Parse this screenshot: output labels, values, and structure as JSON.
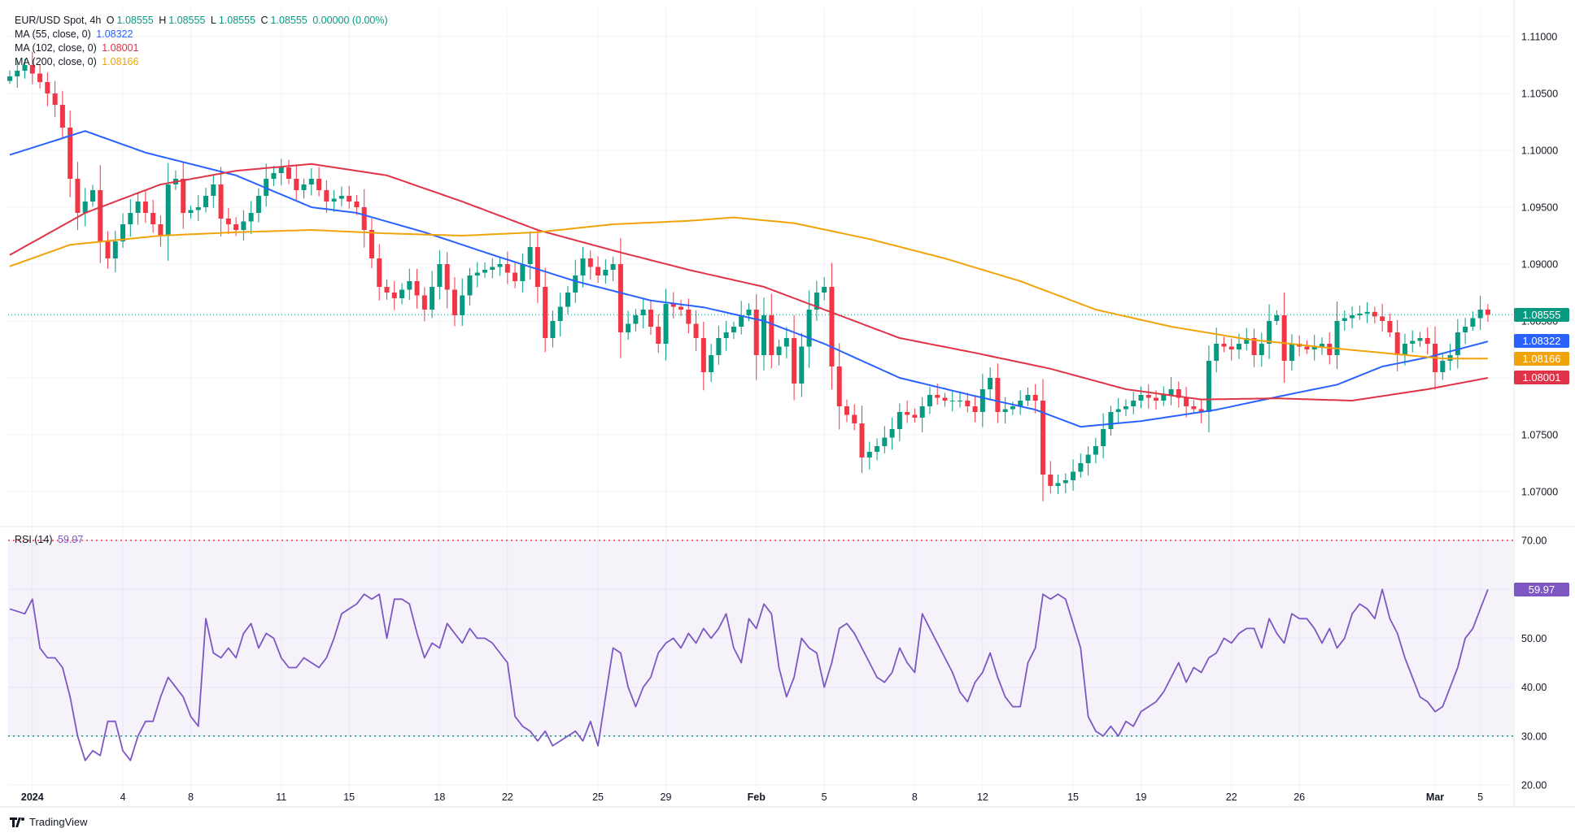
{
  "header": {
    "symbol": "EUR/USD Spot, 4h",
    "o_label": "O",
    "o": "1.08555",
    "h_label": "H",
    "h": "1.08555",
    "l_label": "L",
    "l": "1.08555",
    "c_label": "C",
    "c": "1.08555",
    "change": "0.00000 (0.00%)"
  },
  "indicators": [
    {
      "label": "MA (55, close, 0)",
      "value": "1.08322",
      "color": "#2962ff"
    },
    {
      "label": "MA (102, close, 0)",
      "value": "1.08001",
      "color": "#e03347"
    },
    {
      "label": "MA (200, close, 0)",
      "value": "1.08166",
      "color": "#f0a30a"
    }
  ],
  "price_tags": [
    {
      "value": "1.08555",
      "price": 1.08555,
      "color": "#089981"
    },
    {
      "value": "1.08322",
      "price": 1.08322,
      "color": "#2962ff"
    },
    {
      "value": "1.08166",
      "price": 1.08166,
      "color": "#f0a30a"
    },
    {
      "value": "1.08001",
      "price": 1.08001,
      "color": "#e03347"
    }
  ],
  "rsi": {
    "label": "RSI (14)",
    "value": "59.97",
    "color": "#7e57c2",
    "ticks": [
      "70.00",
      "60.00",
      "50.00",
      "40.00",
      "30.00",
      "20.00"
    ],
    "ylim": [
      16,
      72.5
    ],
    "upper": 70,
    "lower": 30
  },
  "brand": "TradingView",
  "chart_data": {
    "type": "candlestick",
    "ylim": [
      1.0675,
      1.1125
    ],
    "y_ticks": [
      "1.11000",
      "1.10500",
      "1.10000",
      "1.09500",
      "1.09000",
      "1.08500",
      "1.08000",
      "1.07500",
      "1.07000"
    ],
    "x_ticks": [
      {
        "label": "2024",
        "t": 3
      },
      {
        "label": "4",
        "t": 15
      },
      {
        "label": "8",
        "t": 24
      },
      {
        "label": "11",
        "t": 36
      },
      {
        "label": "15",
        "t": 45
      },
      {
        "label": "18",
        "t": 57
      },
      {
        "label": "22",
        "t": 66
      },
      {
        "label": "25",
        "t": 78
      },
      {
        "label": "29",
        "t": 87
      },
      {
        "label": "Feb",
        "t": 99
      },
      {
        "label": "5",
        "t": 108
      },
      {
        "label": "8",
        "t": 120
      },
      {
        "label": "12",
        "t": 129
      },
      {
        "label": "15",
        "t": 141
      },
      {
        "label": "19",
        "t": 150
      },
      {
        "label": "22",
        "t": 162
      },
      {
        "label": "26",
        "t": 171
      },
      {
        "label": "Mar",
        "t": 189
      },
      {
        "label": "5",
        "t": 195
      }
    ],
    "keypoints": [
      [
        0,
        1.1065
      ],
      [
        1,
        1.107
      ],
      [
        2,
        1.1075
      ],
      [
        4,
        1.106
      ],
      [
        6,
        1.104
      ],
      [
        7,
        1.102
      ],
      [
        8,
        1.0975
      ],
      [
        9,
        1.0945
      ],
      [
        11,
        1.0965
      ],
      [
        12,
        1.092
      ],
      [
        13,
        1.0905
      ],
      [
        15,
        1.0935
      ],
      [
        17,
        1.0955
      ],
      [
        19,
        1.0935
      ],
      [
        20,
        1.0925
      ],
      [
        21,
        1.097
      ],
      [
        22,
        1.0975
      ],
      [
        23,
        1.0945
      ],
      [
        25,
        1.095
      ],
      [
        27,
        1.097
      ],
      [
        28,
        1.094
      ],
      [
        30,
        1.093
      ],
      [
        32,
        1.0945
      ],
      [
        34,
        1.0975
      ],
      [
        36,
        1.0985
      ],
      [
        38,
        1.0965
      ],
      [
        40,
        1.0975
      ],
      [
        42,
        1.0955
      ],
      [
        44,
        1.096
      ],
      [
        46,
        1.095
      ],
      [
        47,
        1.093
      ],
      [
        49,
        1.088
      ],
      [
        51,
        1.087
      ],
      [
        53,
        1.0885
      ],
      [
        55,
        1.086
      ],
      [
        57,
        1.09
      ],
      [
        59,
        1.0855
      ],
      [
        61,
        1.089
      ],
      [
        63,
        1.0895
      ],
      [
        65,
        1.09
      ],
      [
        67,
        1.0885
      ],
      [
        69,
        1.0915
      ],
      [
        70,
        1.088
      ],
      [
        71,
        1.0835
      ],
      [
        72,
        1.085
      ],
      [
        74,
        1.0875
      ],
      [
        76,
        1.0905
      ],
      [
        78,
        1.089
      ],
      [
        80,
        1.09
      ],
      [
        81,
        1.084
      ],
      [
        83,
        1.0855
      ],
      [
        84,
        1.086
      ],
      [
        86,
        1.083
      ],
      [
        87,
        1.0865
      ],
      [
        89,
        1.086
      ],
      [
        91,
        1.0835
      ],
      [
        92,
        1.0805
      ],
      [
        94,
        1.0835
      ],
      [
        96,
        1.0845
      ],
      [
        97,
        1.0855
      ],
      [
        98,
        1.086
      ],
      [
        99,
        1.082
      ],
      [
        100,
        1.0855
      ],
      [
        101,
        1.082
      ],
      [
        103,
        1.0835
      ],
      [
        104,
        1.0795
      ],
      [
        106,
        1.086
      ],
      [
        107,
        1.0875
      ],
      [
        108,
        1.088
      ],
      [
        109,
        1.081
      ],
      [
        110,
        1.0775
      ],
      [
        112,
        1.076
      ],
      [
        113,
        1.073
      ],
      [
        115,
        1.074
      ],
      [
        117,
        1.0755
      ],
      [
        118,
        1.077
      ],
      [
        120,
        1.0765
      ],
      [
        122,
        1.0785
      ],
      [
        124,
        1.078
      ],
      [
        126,
        1.078
      ],
      [
        128,
        1.077
      ],
      [
        129,
        1.079
      ],
      [
        130,
        1.08
      ],
      [
        131,
        1.077
      ],
      [
        133,
        1.0775
      ],
      [
        135,
        1.0785
      ],
      [
        136,
        1.078
      ],
      [
        137,
        1.0715
      ],
      [
        138,
        1.0705
      ],
      [
        140,
        1.071
      ],
      [
        142,
        1.0725
      ],
      [
        144,
        1.074
      ],
      [
        145,
        1.0755
      ],
      [
        146,
        1.077
      ],
      [
        148,
        1.0775
      ],
      [
        150,
        1.0785
      ],
      [
        152,
        1.078
      ],
      [
        154,
        1.079
      ],
      [
        156,
        1.0775
      ],
      [
        158,
        1.077
      ],
      [
        159,
        1.0815
      ],
      [
        160,
        1.083
      ],
      [
        162,
        1.0825
      ],
      [
        164,
        1.0835
      ],
      [
        165,
        1.082
      ],
      [
        166,
        1.083
      ],
      [
        167,
        1.085
      ],
      [
        168,
        1.0855
      ],
      [
        169,
        1.0815
      ],
      [
        170,
        1.083
      ],
      [
        172,
        1.0825
      ],
      [
        174,
        1.083
      ],
      [
        175,
        1.082
      ],
      [
        176,
        1.085
      ],
      [
        178,
        1.0855
      ],
      [
        180,
        1.0858
      ],
      [
        182,
        1.085
      ],
      [
        183,
        1.084
      ],
      [
        184,
        1.082
      ],
      [
        185,
        1.083
      ],
      [
        187,
        1.0835
      ],
      [
        188,
        1.083
      ],
      [
        189,
        1.0805
      ],
      [
        190,
        1.0815
      ],
      [
        191,
        1.082
      ],
      [
        192,
        1.084
      ],
      [
        193,
        1.0845
      ],
      [
        195,
        1.086
      ],
      [
        196,
        1.08555
      ]
    ],
    "ma55": [
      [
        0,
        1.0996
      ],
      [
        10,
        1.1017
      ],
      [
        18,
        1.0998
      ],
      [
        30,
        1.0978
      ],
      [
        40,
        1.095
      ],
      [
        46,
        1.0945
      ],
      [
        55,
        1.0928
      ],
      [
        65,
        1.0906
      ],
      [
        75,
        1.0885
      ],
      [
        85,
        1.0868
      ],
      [
        92,
        1.0862
      ],
      [
        100,
        1.085
      ],
      [
        108,
        1.083
      ],
      [
        118,
        1.08
      ],
      [
        128,
        1.0784
      ],
      [
        136,
        1.0772
      ],
      [
        142,
        1.0757
      ],
      [
        150,
        1.0762
      ],
      [
        160,
        1.0772
      ],
      [
        170,
        1.0786
      ],
      [
        176,
        1.0794
      ],
      [
        182,
        1.081
      ],
      [
        188,
        1.0818
      ],
      [
        196,
        1.0832
      ]
    ],
    "ma102": [
      [
        0,
        1.0908
      ],
      [
        10,
        1.0945
      ],
      [
        20,
        1.097
      ],
      [
        30,
        1.0982
      ],
      [
        40,
        1.0988
      ],
      [
        50,
        1.0978
      ],
      [
        60,
        1.0955
      ],
      [
        70,
        1.093
      ],
      [
        80,
        1.0912
      ],
      [
        90,
        1.0895
      ],
      [
        100,
        1.088
      ],
      [
        108,
        1.086
      ],
      [
        118,
        1.0835
      ],
      [
        128,
        1.0822
      ],
      [
        138,
        1.0808
      ],
      [
        148,
        1.079
      ],
      [
        158,
        1.0781
      ],
      [
        168,
        1.0782
      ],
      [
        178,
        1.078
      ],
      [
        188,
        1.079
      ],
      [
        196,
        1.08
      ]
    ],
    "ma200": [
      [
        0,
        1.0898
      ],
      [
        8,
        1.0917
      ],
      [
        20,
        1.0925
      ],
      [
        30,
        1.0928
      ],
      [
        40,
        1.093
      ],
      [
        50,
        1.0927
      ],
      [
        60,
        1.0925
      ],
      [
        70,
        1.0928
      ],
      [
        80,
        1.0935
      ],
      [
        90,
        1.0938
      ],
      [
        96,
        1.0941
      ],
      [
        104,
        1.0936
      ],
      [
        114,
        1.0922
      ],
      [
        124,
        1.0905
      ],
      [
        134,
        1.0885
      ],
      [
        144,
        1.086
      ],
      [
        154,
        1.0845
      ],
      [
        164,
        1.0834
      ],
      [
        174,
        1.0827
      ],
      [
        182,
        1.0822
      ],
      [
        190,
        1.0817
      ],
      [
        196,
        1.0817
      ]
    ],
    "rsi_keypoints": [
      [
        0,
        56
      ],
      [
        2,
        55
      ],
      [
        3,
        58
      ],
      [
        4,
        48
      ],
      [
        5,
        46
      ],
      [
        6,
        46
      ],
      [
        7,
        44
      ],
      [
        8,
        38
      ],
      [
        9,
        30
      ],
      [
        10,
        25
      ],
      [
        11,
        27
      ],
      [
        12,
        26
      ],
      [
        13,
        33
      ],
      [
        14,
        33
      ],
      [
        15,
        27
      ],
      [
        16,
        25
      ],
      [
        17,
        30
      ],
      [
        18,
        33
      ],
      [
        19,
        33
      ],
      [
        20,
        38
      ],
      [
        21,
        42
      ],
      [
        22,
        40
      ],
      [
        23,
        38
      ],
      [
        24,
        34
      ],
      [
        25,
        32
      ],
      [
        26,
        54
      ],
      [
        27,
        47
      ],
      [
        28,
        46
      ],
      [
        29,
        48
      ],
      [
        30,
        46
      ],
      [
        31,
        51
      ],
      [
        32,
        53
      ],
      [
        33,
        48
      ],
      [
        34,
        51
      ],
      [
        35,
        50
      ],
      [
        36,
        46
      ],
      [
        37,
        44
      ],
      [
        38,
        44
      ],
      [
        39,
        46
      ],
      [
        40,
        45
      ],
      [
        41,
        44
      ],
      [
        42,
        46
      ],
      [
        43,
        50
      ],
      [
        44,
        55
      ],
      [
        45,
        56
      ],
      [
        46,
        57
      ],
      [
        47,
        59
      ],
      [
        48,
        58
      ],
      [
        49,
        59
      ],
      [
        50,
        50
      ],
      [
        51,
        58
      ],
      [
        52,
        58
      ],
      [
        53,
        57
      ],
      [
        54,
        51
      ],
      [
        55,
        46
      ],
      [
        56,
        49
      ],
      [
        57,
        48
      ],
      [
        58,
        53
      ],
      [
        59,
        51
      ],
      [
        60,
        49
      ],
      [
        61,
        52
      ],
      [
        62,
        50
      ],
      [
        63,
        50
      ],
      [
        64,
        49
      ],
      [
        65,
        47
      ],
      [
        66,
        45
      ],
      [
        67,
        34
      ],
      [
        68,
        32
      ],
      [
        69,
        31
      ],
      [
        70,
        29
      ],
      [
        71,
        31
      ],
      [
        72,
        28
      ],
      [
        73,
        29
      ],
      [
        74,
        30
      ],
      [
        75,
        31
      ],
      [
        76,
        29
      ],
      [
        77,
        33
      ],
      [
        78,
        28
      ],
      [
        79,
        38
      ],
      [
        80,
        48
      ],
      [
        81,
        47
      ],
      [
        82,
        40
      ],
      [
        83,
        36
      ],
      [
        84,
        40
      ],
      [
        85,
        42
      ],
      [
        86,
        47
      ],
      [
        87,
        49
      ],
      [
        88,
        50
      ],
      [
        89,
        48
      ],
      [
        90,
        51
      ],
      [
        91,
        49
      ],
      [
        92,
        52
      ],
      [
        93,
        50
      ],
      [
        94,
        52
      ],
      [
        95,
        55
      ],
      [
        96,
        48
      ],
      [
        97,
        45
      ],
      [
        98,
        54
      ],
      [
        99,
        52
      ],
      [
        100,
        57
      ],
      [
        101,
        55
      ],
      [
        102,
        44
      ],
      [
        103,
        38
      ],
      [
        104,
        42
      ],
      [
        105,
        50
      ],
      [
        106,
        48
      ],
      [
        107,
        47
      ],
      [
        108,
        40
      ],
      [
        109,
        45
      ],
      [
        110,
        52
      ],
      [
        111,
        53
      ],
      [
        112,
        51
      ],
      [
        113,
        48
      ],
      [
        114,
        45
      ],
      [
        115,
        42
      ],
      [
        116,
        41
      ],
      [
        117,
        43
      ],
      [
        118,
        48
      ],
      [
        119,
        45
      ],
      [
        120,
        43
      ],
      [
        121,
        55
      ],
      [
        122,
        52
      ],
      [
        123,
        49
      ],
      [
        124,
        46
      ],
      [
        125,
        43
      ],
      [
        126,
        39
      ],
      [
        127,
        37
      ],
      [
        128,
        41
      ],
      [
        129,
        43
      ],
      [
        130,
        47
      ],
      [
        131,
        42
      ],
      [
        132,
        38
      ],
      [
        133,
        36
      ],
      [
        134,
        36
      ],
      [
        135,
        45
      ],
      [
        136,
        48
      ],
      [
        137,
        59
      ],
      [
        138,
        58
      ],
      [
        139,
        59
      ],
      [
        140,
        58
      ],
      [
        141,
        53
      ],
      [
        142,
        48
      ],
      [
        143,
        34
      ],
      [
        144,
        31
      ],
      [
        145,
        30
      ],
      [
        146,
        32
      ],
      [
        147,
        30
      ],
      [
        148,
        33
      ],
      [
        149,
        32
      ],
      [
        150,
        35
      ],
      [
        151,
        36
      ],
      [
        152,
        37
      ],
      [
        153,
        39
      ],
      [
        154,
        42
      ],
      [
        155,
        45
      ],
      [
        156,
        41
      ],
      [
        157,
        44
      ],
      [
        158,
        43
      ],
      [
        159,
        46
      ],
      [
        160,
        47
      ],
      [
        161,
        50
      ],
      [
        162,
        49
      ],
      [
        163,
        51
      ],
      [
        164,
        52
      ],
      [
        165,
        52
      ],
      [
        166,
        48
      ],
      [
        167,
        54
      ],
      [
        168,
        51
      ],
      [
        169,
        49
      ],
      [
        170,
        55
      ],
      [
        171,
        54
      ],
      [
        172,
        54
      ],
      [
        173,
        52
      ],
      [
        174,
        49
      ],
      [
        175,
        52
      ],
      [
        176,
        48
      ],
      [
        177,
        50
      ],
      [
        178,
        55
      ],
      [
        179,
        57
      ],
      [
        180,
        56
      ],
      [
        181,
        54
      ],
      [
        182,
        60
      ],
      [
        183,
        54
      ],
      [
        184,
        51
      ],
      [
        185,
        46
      ],
      [
        186,
        42
      ],
      [
        187,
        38
      ],
      [
        188,
        37
      ],
      [
        189,
        35
      ],
      [
        190,
        36
      ],
      [
        191,
        40
      ],
      [
        192,
        44
      ],
      [
        193,
        50
      ],
      [
        194,
        52
      ],
      [
        195,
        56
      ],
      [
        196,
        59.97
      ]
    ]
  }
}
